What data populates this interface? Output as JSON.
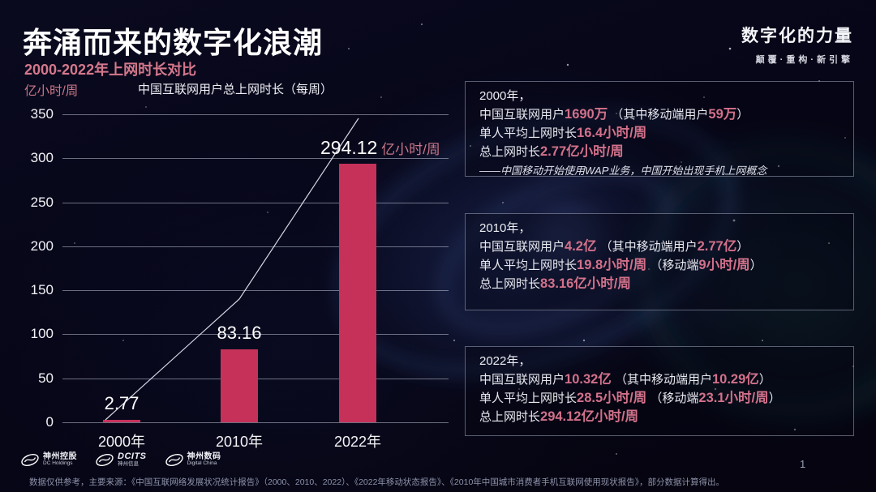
{
  "page": {
    "title": "奔涌而来的数字化浪潮",
    "subtitle": "2000-2022年上网时长对比",
    "page_number": "1"
  },
  "brand": {
    "name": "数字化的力量",
    "tagline": "颠覆·重构·新引擎"
  },
  "chart_data": {
    "type": "bar",
    "title": "中国互联网用户总上网时长（每周）",
    "unit_label": "亿小时/周",
    "categories": [
      "2000年",
      "2010年",
      "2022年"
    ],
    "values": [
      2.77,
      83.16,
      294.12
    ],
    "bar_labels": [
      "2.77",
      "83.16",
      "294.12"
    ],
    "last_label_suffix": "亿小时/周",
    "ylim": [
      0,
      350
    ],
    "yticks": [
      0,
      50,
      100,
      150,
      200,
      250,
      300,
      350
    ],
    "grid": true,
    "trend_line": true,
    "bar_color": "#c6315a",
    "accent_color": "#d5788c",
    "legend": []
  },
  "panels": [
    {
      "heading": "2000年，",
      "lines": [
        [
          {
            "t": "中国互联网用户"
          },
          {
            "t": "1690万",
            "a": true
          },
          {
            "t": " （其中移动端用户"
          },
          {
            "t": "59万",
            "a": true
          },
          {
            "t": "）"
          }
        ],
        [
          {
            "t": "单人平均上网时长"
          },
          {
            "t": "16.4小时/周",
            "a": true
          }
        ],
        [
          {
            "t": "总上网时长"
          },
          {
            "t": "2.77亿小时/周",
            "a": true
          }
        ]
      ],
      "note": "——中国移动开始使用WAP业务，中国开始出现手机上网概念"
    },
    {
      "heading": "2010年，",
      "lines": [
        [
          {
            "t": "中国互联网用户"
          },
          {
            "t": "4.2亿",
            "a": true
          },
          {
            "t": " （其中移动端用户"
          },
          {
            "t": "2.77亿",
            "a": true
          },
          {
            "t": "）"
          }
        ],
        [
          {
            "t": "单人平均上网时长"
          },
          {
            "t": "19.8小时/周",
            "a": true
          },
          {
            "t": " （移动端"
          },
          {
            "t": "9小时/周",
            "a": true
          },
          {
            "t": "）"
          }
        ],
        [
          {
            "t": "总上网时长"
          },
          {
            "t": "83.16亿小时/周",
            "a": true
          }
        ]
      ],
      "note": ""
    },
    {
      "heading": "2022年，",
      "lines": [
        [
          {
            "t": "中国互联网用户"
          },
          {
            "t": "10.32亿",
            "a": true
          },
          {
            "t": " （其中移动端用户"
          },
          {
            "t": "10.29亿",
            "a": true
          },
          {
            "t": "）"
          }
        ],
        [
          {
            "t": "单人平均上网时长"
          },
          {
            "t": "28.5小时/周",
            "a": true
          },
          {
            "t": " （移动端"
          },
          {
            "t": "23.1小时/周",
            "a": true
          },
          {
            "t": "）"
          }
        ],
        [
          {
            "t": "总上网时长"
          },
          {
            "t": "294.12亿小时/周",
            "a": true
          }
        ]
      ],
      "note": ""
    }
  ],
  "footer": {
    "logos": [
      {
        "line1": "神州控股",
        "line2": "DC Holdings"
      },
      {
        "line1": "DCITS",
        "line2": "神州信息"
      },
      {
        "line1": "神州数码",
        "line2": "Digital China"
      }
    ],
    "disclaimer": "数据仅供参考，主要来源：《中国互联网络发展状况统计报告》（2000、2010、2022）、《2022年移动状态报告》、《2010年中国城市消费者手机互联网使用现状报告》，部分数据计算得出。"
  }
}
